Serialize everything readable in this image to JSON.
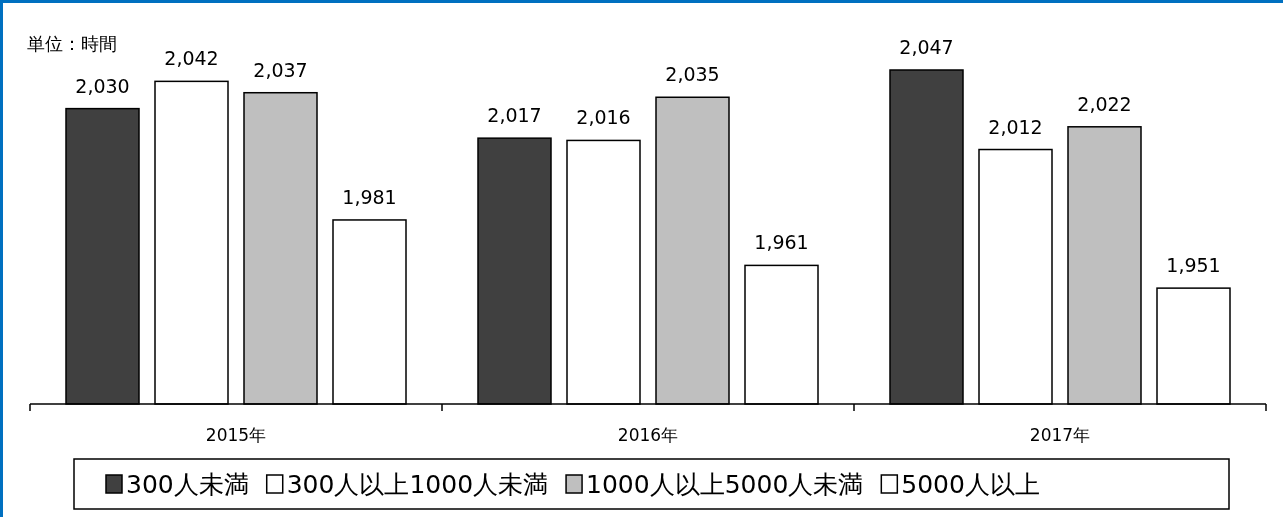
{
  "chart_data": {
    "type": "bar",
    "categories": [
      "2015年",
      "2016年",
      "2017年"
    ],
    "series": [
      {
        "name": "300人未満",
        "color": "#404040",
        "values": [
          2030,
          2017,
          2047
        ],
        "value_labels": [
          "2,030",
          "2,017",
          "2,047"
        ]
      },
      {
        "name": "300人以上1000人未満",
        "color": "#ffffff",
        "values": [
          2042,
          2016,
          2012
        ],
        "value_labels": [
          "2,042",
          "2,016",
          "2,012"
        ]
      },
      {
        "name": "1000人以上5000人未満",
        "color": "#bfbfbf",
        "values": [
          2037,
          2035,
          2022
        ],
        "value_labels": [
          "2,037",
          "2,035",
          "2,022"
        ]
      },
      {
        "name": "5000人以上",
        "color": "#ffffff",
        "values": [
          1981,
          1961,
          1951
        ],
        "value_labels": [
          "1,981",
          "1,961",
          "1,951"
        ]
      }
    ],
    "ylim": [
      1900,
      2047
    ],
    "tick_labels": "x",
    "legend": "bottom",
    "annotations": [
      "単位：時間"
    ]
  }
}
